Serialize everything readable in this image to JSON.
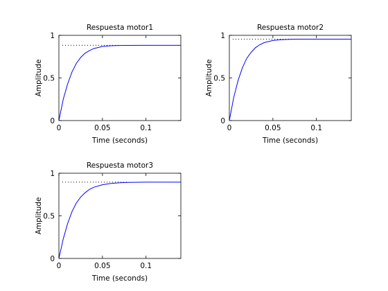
{
  "chart_data": [
    {
      "type": "line",
      "title": "Respuesta motor1",
      "xlabel": "Time (seconds)",
      "ylabel": "Amplitude",
      "xlim": [
        0,
        0.14
      ],
      "ylim": [
        0,
        1
      ],
      "xticks": [
        0,
        0.05,
        0.1
      ],
      "xtick_labels": [
        "0",
        "0.05",
        "0.1"
      ],
      "yticks": [
        0,
        0.5,
        1
      ],
      "ytick_labels": [
        "0",
        "0.5",
        "1"
      ],
      "series": [
        {
          "x": [
            0,
            0.005,
            0.01,
            0.015,
            0.02,
            0.025,
            0.03,
            0.035,
            0.04,
            0.05,
            0.06,
            0.07,
            0.08,
            0.1,
            0.12,
            0.14
          ],
          "y": [
            0,
            0.25,
            0.43,
            0.57,
            0.67,
            0.74,
            0.79,
            0.82,
            0.845,
            0.87,
            0.878,
            0.881,
            0.882,
            0.883,
            0.883,
            0.883
          ],
          "color": "#0000ff"
        }
      ],
      "steady_state": {
        "value": 0.883,
        "x_start": 0.004,
        "x_end": 0.07
      }
    },
    {
      "type": "line",
      "title": "Respuesta motor2",
      "xlabel": "Time (seconds)",
      "ylabel": "Amplitude",
      "xlim": [
        0,
        0.14
      ],
      "ylim": [
        0,
        1
      ],
      "xticks": [
        0,
        0.05,
        0.1
      ],
      "xtick_labels": [
        "0",
        "0.05",
        "0.1"
      ],
      "yticks": [
        0,
        0.5,
        1
      ],
      "ytick_labels": [
        "0",
        "0.5",
        "1"
      ],
      "series": [
        {
          "x": [
            0,
            0.005,
            0.01,
            0.015,
            0.02,
            0.025,
            0.03,
            0.035,
            0.04,
            0.05,
            0.06,
            0.07,
            0.08,
            0.1,
            0.12,
            0.14
          ],
          "y": [
            0,
            0.27,
            0.47,
            0.62,
            0.73,
            0.8,
            0.855,
            0.89,
            0.915,
            0.94,
            0.95,
            0.954,
            0.955,
            0.955,
            0.955,
            0.955
          ],
          "color": "#0000ff"
        }
      ],
      "steady_state": {
        "value": 0.955,
        "x_start": 0.004,
        "x_end": 0.075
      }
    },
    {
      "type": "line",
      "title": "Respuesta motor3",
      "xlabel": "Time (seconds)",
      "ylabel": "Amplitude",
      "xlim": [
        0,
        0.14
      ],
      "ylim": [
        0,
        1
      ],
      "xticks": [
        0,
        0.05,
        0.1
      ],
      "xtick_labels": [
        "0",
        "0.05",
        "0.1"
      ],
      "yticks": [
        0,
        0.5,
        1
      ],
      "ytick_labels": [
        "0",
        "0.5",
        "1"
      ],
      "series": [
        {
          "x": [
            0,
            0.005,
            0.01,
            0.015,
            0.02,
            0.025,
            0.03,
            0.035,
            0.04,
            0.05,
            0.06,
            0.07,
            0.08,
            0.1,
            0.12,
            0.14
          ],
          "y": [
            0,
            0.23,
            0.41,
            0.55,
            0.65,
            0.72,
            0.77,
            0.81,
            0.835,
            0.865,
            0.88,
            0.888,
            0.892,
            0.895,
            0.895,
            0.895
          ],
          "color": "#0000ff"
        }
      ],
      "steady_state": {
        "value": 0.895,
        "x_start": 0.004,
        "x_end": 0.08
      }
    }
  ]
}
